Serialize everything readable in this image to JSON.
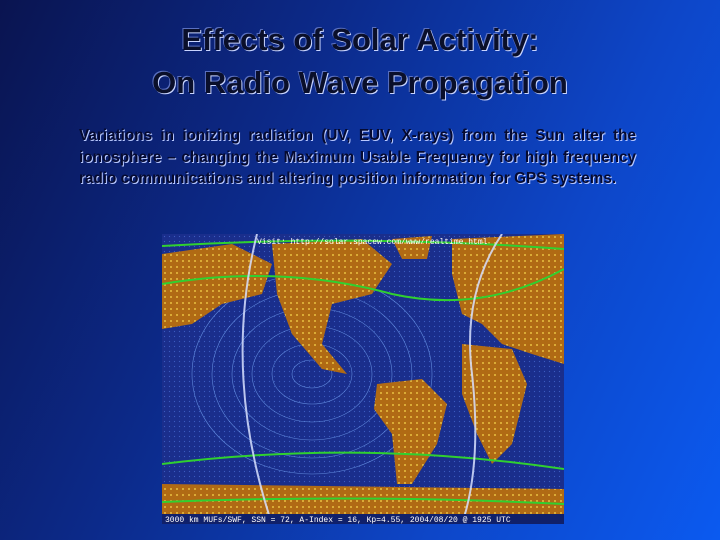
{
  "title": {
    "line1": "Effects of Solar Activity:",
    "line2": "On Radio Wave Propagation"
  },
  "body": "Variations in ionizing radiation (UV, EUV, X-rays) from the Sun alter the ionosphere – changing the Maximum Usable Frequency for high frequency radio communications and altering position information for GPS systems.",
  "map": {
    "header": "Visit: http://solar.spacew.com/www/realtime.html",
    "footer": "3000 km MUFs/SWF, SSN = 72, A-Index = 16, Kp=4.55, 2004/08/20 @ 1925 UTC"
  }
}
